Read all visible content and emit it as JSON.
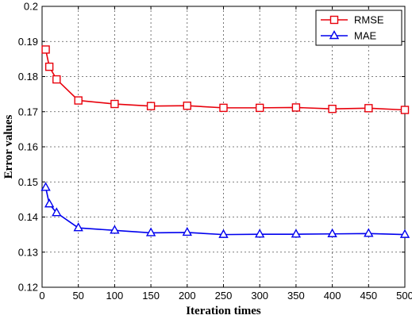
{
  "chart_data": {
    "type": "line",
    "xlabel": "Iteration times",
    "ylabel": "Error values",
    "xlim": [
      0,
      500
    ],
    "ylim": [
      0.12,
      0.2
    ],
    "xticks": [
      0,
      50,
      100,
      150,
      200,
      250,
      300,
      350,
      400,
      450,
      500
    ],
    "yticks": [
      0.12,
      0.13,
      0.14,
      0.15,
      0.16,
      0.17,
      0.18,
      0.19,
      0.2
    ],
    "xtick_labels": [
      "0",
      "50",
      "100",
      "150",
      "200",
      "250",
      "300",
      "350",
      "400",
      "450",
      "500"
    ],
    "ytick_labels": [
      "0.12",
      "0.13",
      "0.14",
      "0.15",
      "0.16",
      "0.17",
      "0.18",
      "0.19",
      "0.2"
    ],
    "grid": true,
    "legend_position": "top-right",
    "x": [
      5,
      10,
      20,
      50,
      100,
      150,
      200,
      250,
      300,
      350,
      400,
      450,
      500
    ],
    "series": [
      {
        "name": "RMSE",
        "color": "#e8000b",
        "marker": "square",
        "values": [
          0.1877,
          0.1828,
          0.1792,
          0.1732,
          0.1722,
          0.1716,
          0.1717,
          0.1711,
          0.1711,
          0.1712,
          0.1708,
          0.171,
          0.1705
        ]
      },
      {
        "name": "MAE",
        "color": "#0000ee",
        "marker": "triangle",
        "values": [
          0.1484,
          0.1437,
          0.1412,
          0.1369,
          0.1362,
          0.1355,
          0.1356,
          0.135,
          0.1351,
          0.1351,
          0.1352,
          0.1353,
          0.135
        ]
      }
    ]
  }
}
